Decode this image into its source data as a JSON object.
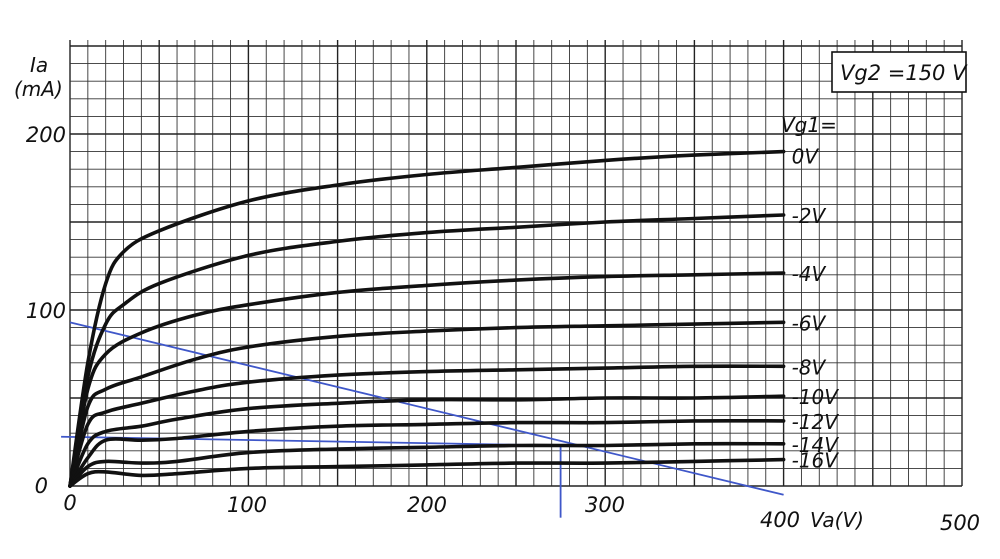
{
  "chart_data": {
    "type": "line",
    "title": "",
    "xlabel": "Va(V)",
    "ylabel_line1": "Ia",
    "ylabel_line2": "(mA)",
    "xlim": [
      0,
      500
    ],
    "ylim": [
      0,
      200
    ],
    "grid": true,
    "x_ticks": [
      "0",
      "100",
      "200",
      "300",
      "400",
      "500"
    ],
    "y_ticks": [
      "0",
      "100",
      "200"
    ],
    "annotation": "Vg2 =150 V",
    "parameter_header": "Vg1=",
    "series": [
      {
        "name": "0V",
        "points": [
          [
            0,
            0
          ],
          [
            10,
            70
          ],
          [
            20,
            115
          ],
          [
            30,
            133
          ],
          [
            50,
            145
          ],
          [
            100,
            162
          ],
          [
            150,
            171
          ],
          [
            200,
            177
          ],
          [
            250,
            181
          ],
          [
            300,
            185
          ],
          [
            350,
            188
          ],
          [
            400,
            190
          ]
        ]
      },
      {
        "name": "-2V",
        "points": [
          [
            0,
            0
          ],
          [
            10,
            62
          ],
          [
            20,
            92
          ],
          [
            30,
            103
          ],
          [
            50,
            115
          ],
          [
            100,
            131
          ],
          [
            150,
            139
          ],
          [
            200,
            144
          ],
          [
            250,
            147
          ],
          [
            300,
            150
          ],
          [
            350,
            152
          ],
          [
            400,
            154
          ]
        ]
      },
      {
        "name": "-4V",
        "points": [
          [
            0,
            0
          ],
          [
            10,
            55
          ],
          [
            20,
            75
          ],
          [
            40,
            87
          ],
          [
            70,
            97
          ],
          [
            100,
            103
          ],
          [
            150,
            110
          ],
          [
            200,
            114
          ],
          [
            250,
            117
          ],
          [
            300,
            119
          ],
          [
            350,
            120
          ],
          [
            400,
            121
          ]
        ]
      },
      {
        "name": "-6V",
        "points": [
          [
            0,
            0
          ],
          [
            10,
            45
          ],
          [
            20,
            55
          ],
          [
            40,
            62
          ],
          [
            70,
            72
          ],
          [
            100,
            79
          ],
          [
            150,
            85
          ],
          [
            200,
            88
          ],
          [
            250,
            90
          ],
          [
            300,
            91
          ],
          [
            350,
            92
          ],
          [
            400,
            93
          ]
        ]
      },
      {
        "name": "-8V",
        "points": [
          [
            0,
            0
          ],
          [
            10,
            35
          ],
          [
            20,
            42
          ],
          [
            40,
            47
          ],
          [
            70,
            54
          ],
          [
            100,
            59
          ],
          [
            150,
            63
          ],
          [
            200,
            65
          ],
          [
            250,
            66
          ],
          [
            300,
            67
          ],
          [
            350,
            68
          ],
          [
            400,
            68
          ]
        ]
      },
      {
        "name": "-10V",
        "points": [
          [
            0,
            0
          ],
          [
            10,
            24
          ],
          [
            20,
            31
          ],
          [
            40,
            34
          ],
          [
            60,
            38
          ],
          [
            100,
            44
          ],
          [
            150,
            47
          ],
          [
            200,
            49
          ],
          [
            250,
            49
          ],
          [
            300,
            50
          ],
          [
            350,
            50
          ],
          [
            400,
            51
          ]
        ]
      },
      {
        "name": "-12V",
        "points": [
          [
            0,
            0
          ],
          [
            10,
            16
          ],
          [
            20,
            26
          ],
          [
            40,
            26
          ],
          [
            60,
            27
          ],
          [
            100,
            31
          ],
          [
            150,
            34
          ],
          [
            200,
            35
          ],
          [
            250,
            36
          ],
          [
            300,
            36
          ],
          [
            350,
            37
          ],
          [
            400,
            37
          ]
        ]
      },
      {
        "name": "-14V",
        "points": [
          [
            0,
            0
          ],
          [
            10,
            11
          ],
          [
            20,
            14
          ],
          [
            40,
            13
          ],
          [
            60,
            14
          ],
          [
            100,
            19
          ],
          [
            150,
            21
          ],
          [
            200,
            22
          ],
          [
            250,
            23
          ],
          [
            300,
            23
          ],
          [
            350,
            24
          ],
          [
            400,
            24
          ]
        ]
      },
      {
        "name": "-16V",
        "points": [
          [
            0,
            0
          ],
          [
            10,
            7
          ],
          [
            20,
            8
          ],
          [
            40,
            6
          ],
          [
            60,
            7
          ],
          [
            100,
            10
          ],
          [
            150,
            11
          ],
          [
            200,
            12
          ],
          [
            250,
            13
          ],
          [
            300,
            13
          ],
          [
            350,
            14
          ],
          [
            400,
            15
          ]
        ]
      }
    ],
    "overlay_lines": [
      {
        "name": "load-line",
        "points": [
          [
            0,
            93
          ],
          [
            400,
            -5
          ]
        ]
      },
      {
        "name": "operating-point-horizontal",
        "points": [
          [
            -5,
            28
          ],
          [
            275,
            23
          ]
        ]
      },
      {
        "name": "operating-point-vertical",
        "points": [
          [
            275,
            23
          ],
          [
            275,
            -18
          ]
        ]
      }
    ],
    "colors": {
      "curves": "#111111",
      "grid": "#333333",
      "overlay": "#3f57c9",
      "background": "#ffffff"
    }
  }
}
